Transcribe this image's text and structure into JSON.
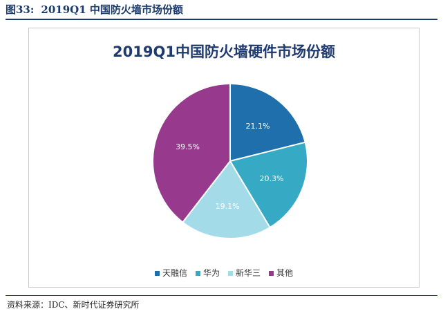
{
  "figure": {
    "number": "图33:",
    "title": "2019Q1 中国防火墙市场份额"
  },
  "source": "资料来源：IDC、新时代证券研究所",
  "chart_data": {
    "type": "pie",
    "title": "2019Q1中国防火墙硬件市场份额",
    "slices": [
      {
        "name": "天融信",
        "value": 21.1,
        "label": "21.1%",
        "color": "#1f6fad"
      },
      {
        "name": "华为",
        "value": 20.3,
        "label": "20.3%",
        "color": "#36a9c4"
      },
      {
        "name": "新华三",
        "value": 19.1,
        "label": "19.1%",
        "color": "#a3dbe8"
      },
      {
        "name": "其他",
        "value": 39.5,
        "label": "39.5%",
        "color": "#973a8d"
      }
    ],
    "legend_position": "bottom"
  }
}
